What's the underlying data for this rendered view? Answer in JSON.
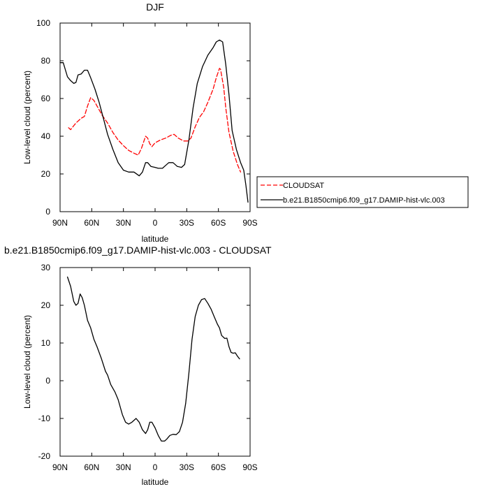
{
  "chart_data": [
    {
      "type": "line",
      "title": "DJF",
      "xlabel": "latitude",
      "ylabel": "Low-level cloud (percent)",
      "xlim": [
        90,
        -90
      ],
      "ylim": [
        0,
        100
      ],
      "xticks": [
        90,
        60,
        30,
        0,
        -30,
        -60,
        -90
      ],
      "xtick_labels": [
        "90N",
        "60N",
        "30N",
        "0",
        "30S",
        "60S",
        "90S"
      ],
      "yticks": [
        0,
        20,
        40,
        60,
        80,
        100
      ],
      "ytick_labels": [
        "0",
        "20",
        "40",
        "60",
        "80",
        "100"
      ],
      "legend_position": "right",
      "series": [
        {
          "name": "CLOUDSAT",
          "color": "#ff0000",
          "dash": true,
          "points": [
            [
              82,
              44.5
            ],
            [
              80,
              43.5
            ],
            [
              75,
              47
            ],
            [
              70,
              49.5
            ],
            [
              67,
              50.5
            ],
            [
              64,
              56
            ],
            [
              61,
              60.5
            ],
            [
              58,
              59
            ],
            [
              55,
              56
            ],
            [
              50,
              51
            ],
            [
              45,
              47
            ],
            [
              40,
              42
            ],
            [
              35,
              38
            ],
            [
              30,
              35
            ],
            [
              25,
              32.5
            ],
            [
              20,
              31
            ],
            [
              16,
              30
            ],
            [
              13,
              33.5
            ],
            [
              9,
              40
            ],
            [
              7,
              39
            ],
            [
              5,
              36
            ],
            [
              3,
              34.5
            ],
            [
              0,
              36.5
            ],
            [
              -5,
              38
            ],
            [
              -10,
              39
            ],
            [
              -15,
              40.5
            ],
            [
              -18,
              41
            ],
            [
              -22,
              39
            ],
            [
              -27,
              37.5
            ],
            [
              -31,
              37.5
            ],
            [
              -34,
              39
            ],
            [
              -38,
              45
            ],
            [
              -42,
              50
            ],
            [
              -46,
              53
            ],
            [
              -50,
              58
            ],
            [
              -55,
              65
            ],
            [
              -58,
              71
            ],
            [
              -61,
              76
            ],
            [
              -62,
              75.5
            ],
            [
              -65,
              66
            ],
            [
              -67,
              55
            ],
            [
              -70,
              42
            ],
            [
              -74,
              32
            ],
            [
              -78,
              25
            ],
            [
              -81,
              21
            ]
          ]
        },
        {
          "name": "b.e21.B1850cmip6.f09_g17.DAMIP-hist-vlc.003",
          "color": "#000000",
          "dash": false,
          "points": [
            [
              90,
              79
            ],
            [
              87,
              79
            ],
            [
              83,
              71.5
            ],
            [
              80,
              69.5
            ],
            [
              77,
              68
            ],
            [
              75,
              68.5
            ],
            [
              73,
              72.5
            ],
            [
              70,
              73
            ],
            [
              67,
              75
            ],
            [
              64,
              75
            ],
            [
              61,
              71
            ],
            [
              57,
              65
            ],
            [
              53,
              58
            ],
            [
              49,
              49.5
            ],
            [
              45,
              41
            ],
            [
              40,
              33
            ],
            [
              35,
              26
            ],
            [
              30,
              22
            ],
            [
              25,
              21
            ],
            [
              20,
              21
            ],
            [
              15,
              19
            ],
            [
              12,
              21
            ],
            [
              9,
              26
            ],
            [
              7,
              26
            ],
            [
              4,
              24
            ],
            [
              0,
              23.5
            ],
            [
              -3,
              23
            ],
            [
              -7,
              23
            ],
            [
              -10,
              24.5
            ],
            [
              -13,
              26
            ],
            [
              -17,
              26
            ],
            [
              -21,
              24
            ],
            [
              -25,
              23.5
            ],
            [
              -28,
              25
            ],
            [
              -32,
              38
            ],
            [
              -36,
              55
            ],
            [
              -40,
              68
            ],
            [
              -45,
              77
            ],
            [
              -50,
              83
            ],
            [
              -55,
              87
            ],
            [
              -58,
              90
            ],
            [
              -61,
              91
            ],
            [
              -64,
              90
            ],
            [
              -67,
              78
            ],
            [
              -70,
              62
            ],
            [
              -73,
              43
            ],
            [
              -77,
              33
            ],
            [
              -81,
              26
            ],
            [
              -84,
              22
            ],
            [
              -86,
              14
            ],
            [
              -88,
              5
            ]
          ]
        }
      ]
    },
    {
      "type": "line",
      "title": "b.e21.B1850cmip6.f09_g17.DAMIP-hist-vlc.003 - CLOUDSAT",
      "xlabel": "latitude",
      "ylabel": "Low-level cloud (percent)",
      "xlim": [
        90,
        -90
      ],
      "ylim": [
        -20,
        30
      ],
      "xticks": [
        90,
        60,
        30,
        0,
        -30,
        -60,
        -90
      ],
      "xtick_labels": [
        "90N",
        "60N",
        "30N",
        "0",
        "30S",
        "60S",
        "90S"
      ],
      "yticks": [
        -20,
        -10,
        0,
        10,
        20,
        30
      ],
      "ytick_labels": [
        "-20",
        "-10",
        "0",
        "10",
        "20",
        "30"
      ],
      "series": [
        {
          "color": "#000000",
          "dash": false,
          "points": [
            [
              83,
              27.5
            ],
            [
              80,
              25
            ],
            [
              77,
              21
            ],
            [
              75,
              20
            ],
            [
              73,
              20.5
            ],
            [
              71,
              23
            ],
            [
              69,
              22
            ],
            [
              67,
              20
            ],
            [
              64,
              16
            ],
            [
              61,
              14
            ],
            [
              58,
              11
            ],
            [
              55,
              9
            ],
            [
              51,
              6
            ],
            [
              47,
              2.5
            ],
            [
              45,
              1.5
            ],
            [
              42,
              -1
            ],
            [
              38,
              -3
            ],
            [
              35,
              -5
            ],
            [
              31,
              -9
            ],
            [
              28,
              -11
            ],
            [
              25,
              -11.5
            ],
            [
              22,
              -11
            ],
            [
              18,
              -10
            ],
            [
              15,
              -11
            ],
            [
              12,
              -13
            ],
            [
              9,
              -14
            ],
            [
              7,
              -13
            ],
            [
              5,
              -11
            ],
            [
              3,
              -11
            ],
            [
              0,
              -12.5
            ],
            [
              -3,
              -14.5
            ],
            [
              -6,
              -16
            ],
            [
              -9,
              -16
            ],
            [
              -11,
              -15.5
            ],
            [
              -14,
              -14.5
            ],
            [
              -17,
              -14.2
            ],
            [
              -20,
              -14.3
            ],
            [
              -23,
              -13.5
            ],
            [
              -26,
              -11
            ],
            [
              -29,
              -6
            ],
            [
              -32,
              2
            ],
            [
              -35,
              11
            ],
            [
              -38,
              17
            ],
            [
              -41,
              20
            ],
            [
              -44,
              21.5
            ],
            [
              -47,
              21.8
            ],
            [
              -50,
              20.5
            ],
            [
              -53,
              19
            ],
            [
              -56,
              17
            ],
            [
              -59,
              15
            ],
            [
              -61,
              14
            ],
            [
              -63,
              12
            ],
            [
              -66,
              11.2
            ],
            [
              -68,
              11.3
            ],
            [
              -70,
              9
            ],
            [
              -72,
              7.5
            ],
            [
              -74,
              7.3
            ],
            [
              -76,
              7.4
            ],
            [
              -78,
              6.5
            ],
            [
              -80,
              5.8
            ]
          ]
        }
      ]
    }
  ]
}
